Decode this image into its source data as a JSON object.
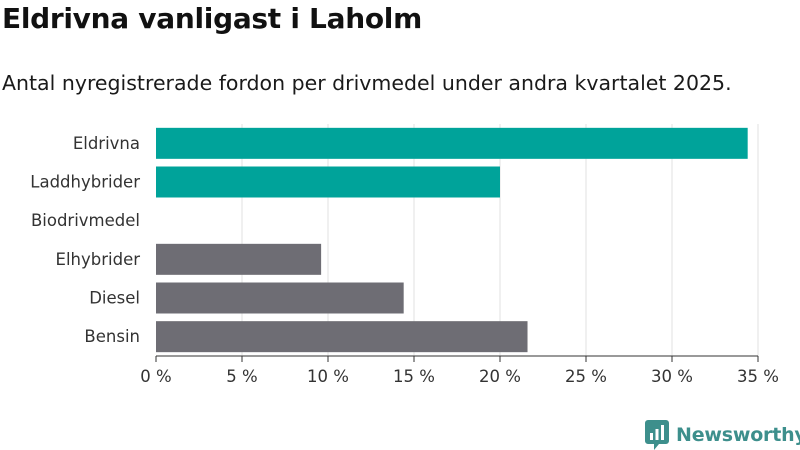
{
  "title": "Eldrivna vanligast i Laholm",
  "subtitle": "Antal nyregistrerade fordon per drivmedel under andra kvartalet 2025.",
  "brand": {
    "name": "Newsworthy",
    "color": "#3d8f8c",
    "icon": "newsworthy-logo-icon"
  },
  "chart_data": {
    "type": "bar",
    "orientation": "horizontal",
    "categories": [
      "Eldrivna",
      "Laddhybrider",
      "Biodrivmedel",
      "Elhybrider",
      "Diesel",
      "Bensin"
    ],
    "values": [
      34.4,
      20.0,
      0,
      9.6,
      14.4,
      21.6
    ],
    "colors": [
      "#00a39a",
      "#00a39a",
      "#00a39a",
      "#6e6d74",
      "#6e6d74",
      "#6e6d74"
    ],
    "xlim": [
      0,
      35
    ],
    "xticks": [
      0,
      5,
      10,
      15,
      20,
      25,
      30,
      35
    ],
    "xtick_labels": [
      "0 %",
      "5 %",
      "10 %",
      "15 %",
      "20 %",
      "25 %",
      "30 %",
      "35 %"
    ],
    "grid": true,
    "xlabel": "",
    "ylabel": ""
  }
}
